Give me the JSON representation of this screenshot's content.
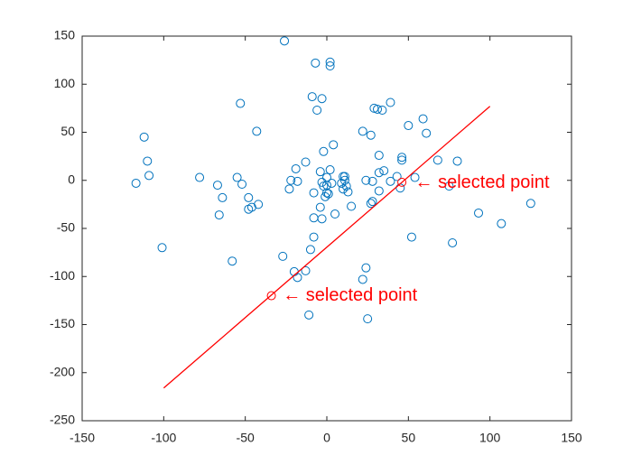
{
  "chart_data": {
    "type": "scatter",
    "xlim": [
      -150,
      150
    ],
    "xticks": [
      -150,
      -100,
      -50,
      0,
      50,
      100,
      150
    ],
    "ylim": [
      -250,
      150
    ],
    "yticks": [
      -250,
      -200,
      -150,
      -100,
      -50,
      0,
      50,
      100,
      150
    ],
    "grid": false,
    "box": true,
    "series": [
      {
        "color": "#0072bd",
        "marker": "circle",
        "x": [
          -26,
          -7,
          2,
          2,
          -9,
          -3,
          -6,
          -53,
          -43,
          -112,
          -110,
          -109,
          -117,
          -78,
          -55,
          -52,
          -67,
          -64,
          -66,
          -48,
          -48,
          -46,
          -42,
          -58,
          -101,
          -22,
          -19,
          -13,
          -23,
          -18,
          -4,
          -2,
          4,
          2,
          -3,
          0,
          3,
          0,
          1,
          -1,
          -8,
          0,
          -2,
          5,
          -4,
          -3,
          -8,
          -8,
          -10,
          -13,
          -20,
          -18,
          -27,
          -11,
          10,
          11,
          12,
          13,
          10,
          15,
          9,
          11,
          22,
          29,
          31,
          34,
          39,
          27,
          32,
          32,
          35,
          32,
          28,
          27,
          24,
          28,
          39,
          43,
          45,
          46,
          46,
          50,
          59,
          61,
          54,
          68,
          80,
          75,
          52,
          77,
          93,
          107,
          125,
          24,
          22,
          25
        ],
        "y": [
          145,
          122,
          123,
          119,
          87,
          85,
          73,
          80,
          51,
          45,
          20,
          5,
          -3,
          3,
          3,
          -4,
          -5,
          -18,
          -36,
          -18,
          -30,
          -28,
          -25,
          -84,
          -70,
          0,
          12,
          19,
          -9,
          -1,
          9,
          30,
          37,
          11,
          -2,
          3,
          -3,
          -13,
          -14,
          -17,
          -13,
          -5,
          -6,
          -35,
          -28,
          -40,
          -39,
          -59,
          -72,
          -94,
          -95,
          -101,
          -79,
          -140,
          4,
          0,
          -6,
          -12,
          -9,
          -27,
          -3,
          4,
          51,
          75,
          74,
          73,
          81,
          47,
          26,
          8,
          10,
          -11,
          -22,
          -24,
          0,
          -1,
          -1,
          4,
          -8,
          21,
          24,
          57,
          64,
          49,
          3,
          21,
          20,
          -6,
          -59,
          -65,
          -34,
          -45,
          -24,
          -91,
          -103,
          -144
        ]
      },
      {
        "color": "#ff0000",
        "marker": "circle",
        "x": [
          46,
          -34
        ],
        "y": [
          -2,
          -120
        ]
      },
      {
        "color": "#ff0000",
        "marker": "line",
        "x": [
          -100,
          100
        ],
        "y": [
          -216,
          77
        ]
      }
    ],
    "annotations": [
      {
        "text": "← selected point",
        "x": 54,
        "y": -3,
        "color": "#ff0000"
      },
      {
        "text": "← selected point",
        "x": -27,
        "y": -120,
        "color": "#ff0000"
      }
    ]
  }
}
